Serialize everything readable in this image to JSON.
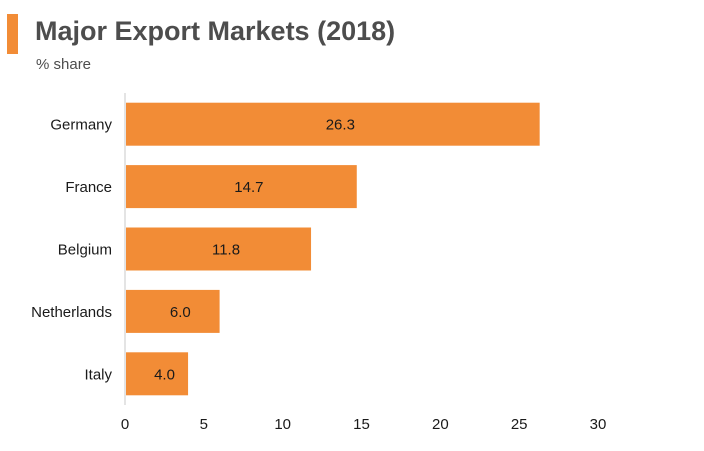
{
  "header": {
    "title": "Major Export Markets (2018)",
    "subtitle": "% share"
  },
  "colors": {
    "accent": "#f28c36",
    "bar": "#f28c36",
    "axis": "#c8c8c8",
    "text": "#1a1a1a"
  },
  "chart_data": {
    "type": "bar",
    "orientation": "horizontal",
    "title": "Major Export Markets (2018)",
    "subtitle": "% share",
    "categories": [
      "Germany",
      "France",
      "Belgium",
      "Netherlands",
      "Italy"
    ],
    "values": [
      26.3,
      14.7,
      11.8,
      6.0,
      4.0
    ],
    "value_labels": [
      "26.3",
      "14.7",
      "11.8",
      "6.0",
      "4.0"
    ],
    "xlim": [
      0,
      30
    ],
    "xticks": [
      0,
      5,
      10,
      15,
      20,
      25,
      30
    ],
    "grid": false,
    "legend": "none"
  }
}
